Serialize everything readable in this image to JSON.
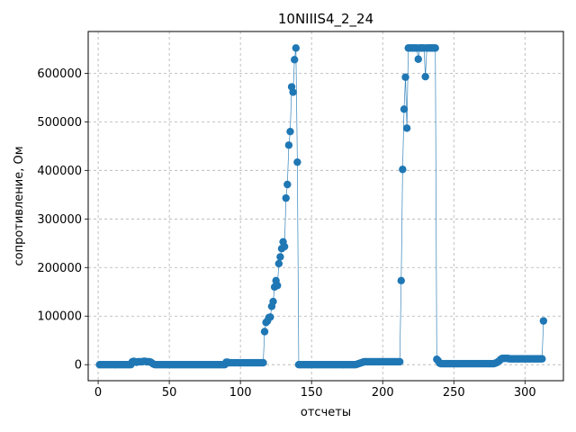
{
  "chart_data": {
    "type": "line",
    "title": "10NIIIS4_2_24",
    "xlabel": "отсчеты",
    "ylabel": "сопротивление, Ом",
    "xlim": [
      -7,
      327
    ],
    "ylim": [
      -33000,
      686000
    ],
    "xticks": [
      0,
      50,
      100,
      150,
      200,
      250,
      300
    ],
    "yticks": [
      0,
      100000,
      200000,
      300000,
      400000,
      500000,
      600000
    ],
    "grid": true,
    "marker": "circle",
    "color": "#1f77b4",
    "series": [
      {
        "points": [
          [
            1,
            0
          ],
          [
            2,
            0
          ],
          [
            3,
            0
          ],
          [
            4,
            0
          ],
          [
            5,
            0
          ],
          [
            6,
            0
          ],
          [
            7,
            0
          ],
          [
            8,
            0
          ],
          [
            9,
            0
          ],
          [
            10,
            0
          ],
          [
            11,
            0
          ],
          [
            12,
            0
          ],
          [
            13,
            0
          ],
          [
            14,
            0
          ],
          [
            15,
            0
          ],
          [
            16,
            0
          ],
          [
            17,
            0
          ],
          [
            18,
            0
          ],
          [
            19,
            0
          ],
          [
            20,
            0
          ],
          [
            21,
            0
          ],
          [
            22,
            0
          ],
          [
            23,
            0
          ],
          [
            24,
            6000
          ],
          [
            25,
            7000
          ],
          [
            26,
            6000
          ],
          [
            27,
            5000
          ],
          [
            28,
            6000
          ],
          [
            29,
            6000
          ],
          [
            30,
            6000
          ],
          [
            31,
            6000
          ],
          [
            32,
            7000
          ],
          [
            33,
            7000
          ],
          [
            34,
            6000
          ],
          [
            35,
            6000
          ],
          [
            36,
            6000
          ],
          [
            37,
            5000
          ],
          [
            38,
            3000
          ],
          [
            39,
            1000
          ],
          [
            40,
            0
          ],
          [
            41,
            0
          ],
          [
            42,
            0
          ],
          [
            43,
            0
          ],
          [
            44,
            0
          ],
          [
            45,
            0
          ],
          [
            46,
            0
          ],
          [
            47,
            0
          ],
          [
            48,
            0
          ],
          [
            49,
            0
          ],
          [
            50,
            0
          ],
          [
            51,
            0
          ],
          [
            52,
            0
          ],
          [
            53,
            0
          ],
          [
            54,
            0
          ],
          [
            55,
            0
          ],
          [
            56,
            0
          ],
          [
            57,
            0
          ],
          [
            58,
            0
          ],
          [
            59,
            0
          ],
          [
            60,
            0
          ],
          [
            61,
            0
          ],
          [
            62,
            0
          ],
          [
            63,
            0
          ],
          [
            64,
            0
          ],
          [
            65,
            0
          ],
          [
            66,
            0
          ],
          [
            67,
            0
          ],
          [
            68,
            0
          ],
          [
            69,
            0
          ],
          [
            70,
            0
          ],
          [
            71,
            0
          ],
          [
            72,
            0
          ],
          [
            73,
            0
          ],
          [
            74,
            0
          ],
          [
            75,
            0
          ],
          [
            76,
            0
          ],
          [
            77,
            0
          ],
          [
            78,
            0
          ],
          [
            79,
            0
          ],
          [
            80,
            0
          ],
          [
            81,
            0
          ],
          [
            82,
            0
          ],
          [
            83,
            0
          ],
          [
            84,
            0
          ],
          [
            85,
            0
          ],
          [
            86,
            0
          ],
          [
            87,
            0
          ],
          [
            88,
            0
          ],
          [
            89,
            0
          ],
          [
            90,
            5000
          ],
          [
            91,
            5000
          ],
          [
            92,
            4000
          ],
          [
            93,
            4000
          ],
          [
            94,
            4000
          ],
          [
            95,
            4000
          ],
          [
            96,
            4000
          ],
          [
            97,
            4000
          ],
          [
            98,
            4000
          ],
          [
            99,
            4000
          ],
          [
            100,
            4000
          ],
          [
            101,
            4000
          ],
          [
            102,
            4000
          ],
          [
            103,
            4000
          ],
          [
            104,
            4000
          ],
          [
            105,
            4000
          ],
          [
            106,
            4000
          ],
          [
            107,
            4000
          ],
          [
            108,
            4000
          ],
          [
            109,
            4000
          ],
          [
            110,
            4000
          ],
          [
            111,
            4000
          ],
          [
            112,
            4000
          ],
          [
            113,
            4000
          ],
          [
            114,
            4000
          ],
          [
            115,
            4000
          ],
          [
            116,
            4000
          ],
          [
            117,
            68000
          ],
          [
            118,
            87000
          ],
          [
            119,
            90000
          ],
          [
            120,
            97000
          ],
          [
            121,
            98000
          ],
          [
            122,
            120000
          ],
          [
            123,
            130000
          ],
          [
            124,
            160000
          ],
          [
            125,
            173000
          ],
          [
            126,
            163000
          ],
          [
            127,
            208000
          ],
          [
            128,
            222000
          ],
          [
            129,
            239000
          ],
          [
            130,
            253000
          ],
          [
            131,
            243000
          ],
          [
            132,
            343000
          ],
          [
            133,
            371000
          ],
          [
            134,
            452000
          ],
          [
            135,
            480000
          ],
          [
            136,
            572000
          ],
          [
            137,
            561000
          ],
          [
            138,
            628000
          ],
          [
            139,
            652000
          ],
          [
            140,
            417000
          ],
          [
            141,
            0
          ],
          [
            142,
            0
          ],
          [
            143,
            0
          ],
          [
            144,
            0
          ],
          [
            145,
            0
          ],
          [
            146,
            0
          ],
          [
            147,
            0
          ],
          [
            148,
            0
          ],
          [
            149,
            0
          ],
          [
            150,
            0
          ],
          [
            151,
            0
          ],
          [
            152,
            0
          ],
          [
            153,
            0
          ],
          [
            154,
            0
          ],
          [
            155,
            0
          ],
          [
            156,
            0
          ],
          [
            157,
            0
          ],
          [
            158,
            0
          ],
          [
            159,
            0
          ],
          [
            160,
            0
          ],
          [
            161,
            0
          ],
          [
            162,
            0
          ],
          [
            163,
            0
          ],
          [
            164,
            0
          ],
          [
            165,
            0
          ],
          [
            166,
            0
          ],
          [
            167,
            0
          ],
          [
            168,
            0
          ],
          [
            169,
            0
          ],
          [
            170,
            0
          ],
          [
            171,
            0
          ],
          [
            172,
            0
          ],
          [
            173,
            0
          ],
          [
            174,
            0
          ],
          [
            175,
            0
          ],
          [
            176,
            0
          ],
          [
            177,
            0
          ],
          [
            178,
            0
          ],
          [
            179,
            0
          ],
          [
            180,
            0
          ],
          [
            181,
            0
          ],
          [
            182,
            1000
          ],
          [
            183,
            2000
          ],
          [
            184,
            3000
          ],
          [
            185,
            4000
          ],
          [
            186,
            5000
          ],
          [
            187,
            6000
          ],
          [
            188,
            6000
          ],
          [
            189,
            6000
          ],
          [
            190,
            6000
          ],
          [
            191,
            6000
          ],
          [
            192,
            6000
          ],
          [
            193,
            6000
          ],
          [
            194,
            6000
          ],
          [
            195,
            6000
          ],
          [
            196,
            6000
          ],
          [
            197,
            6000
          ],
          [
            198,
            6000
          ],
          [
            199,
            6000
          ],
          [
            200,
            6000
          ],
          [
            201,
            6000
          ],
          [
            202,
            6000
          ],
          [
            203,
            6000
          ],
          [
            204,
            6000
          ],
          [
            205,
            6000
          ],
          [
            206,
            6000
          ],
          [
            207,
            6000
          ],
          [
            208,
            6000
          ],
          [
            209,
            6000
          ],
          [
            210,
            6000
          ],
          [
            211,
            6000
          ],
          [
            212,
            6000
          ],
          [
            213,
            173000
          ],
          [
            214,
            402000
          ],
          [
            215,
            526000
          ],
          [
            216,
            592000
          ],
          [
            217,
            487000
          ],
          [
            218,
            652000
          ],
          [
            219,
            652000
          ],
          [
            220,
            652000
          ],
          [
            221,
            652000
          ],
          [
            222,
            652000
          ],
          [
            223,
            652000
          ],
          [
            224,
            652000
          ],
          [
            225,
            629000
          ],
          [
            226,
            652000
          ],
          [
            227,
            652000
          ],
          [
            228,
            652000
          ],
          [
            229,
            652000
          ],
          [
            230,
            593000
          ],
          [
            231,
            652000
          ],
          [
            232,
            652000
          ],
          [
            233,
            652000
          ],
          [
            234,
            652000
          ],
          [
            235,
            652000
          ],
          [
            236,
            652000
          ],
          [
            237,
            652000
          ],
          [
            238,
            11000
          ],
          [
            239,
            8000
          ],
          [
            240,
            3000
          ],
          [
            241,
            2000
          ],
          [
            242,
            2000
          ],
          [
            243,
            2000
          ],
          [
            244,
            2000
          ],
          [
            245,
            2000
          ],
          [
            246,
            2000
          ],
          [
            247,
            2000
          ],
          [
            248,
            2000
          ],
          [
            249,
            2000
          ],
          [
            250,
            2000
          ],
          [
            251,
            2000
          ],
          [
            252,
            2000
          ],
          [
            253,
            2000
          ],
          [
            254,
            2000
          ],
          [
            255,
            2000
          ],
          [
            256,
            2000
          ],
          [
            257,
            2000
          ],
          [
            258,
            2000
          ],
          [
            259,
            2000
          ],
          [
            260,
            2000
          ],
          [
            261,
            2000
          ],
          [
            262,
            2000
          ],
          [
            263,
            2000
          ],
          [
            264,
            2000
          ],
          [
            265,
            2000
          ],
          [
            266,
            2000
          ],
          [
            267,
            2000
          ],
          [
            268,
            2000
          ],
          [
            269,
            2000
          ],
          [
            270,
            2000
          ],
          [
            271,
            2000
          ],
          [
            272,
            2000
          ],
          [
            273,
            2000
          ],
          [
            274,
            2000
          ],
          [
            275,
            2000
          ],
          [
            276,
            2000
          ],
          [
            277,
            2000
          ],
          [
            278,
            2000
          ],
          [
            279,
            3000
          ],
          [
            280,
            4000
          ],
          [
            281,
            6000
          ],
          [
            282,
            8000
          ],
          [
            283,
            11000
          ],
          [
            284,
            13000
          ],
          [
            285,
            13000
          ],
          [
            286,
            13000
          ],
          [
            287,
            13000
          ],
          [
            288,
            13000
          ],
          [
            289,
            12000
          ],
          [
            290,
            12000
          ],
          [
            291,
            12000
          ],
          [
            292,
            12000
          ],
          [
            293,
            12000
          ],
          [
            294,
            12000
          ],
          [
            295,
            12000
          ],
          [
            296,
            12000
          ],
          [
            297,
            12000
          ],
          [
            298,
            12000
          ],
          [
            299,
            12000
          ],
          [
            300,
            12000
          ],
          [
            301,
            12000
          ],
          [
            302,
            12000
          ],
          [
            303,
            12000
          ],
          [
            304,
            12000
          ],
          [
            305,
            12000
          ],
          [
            306,
            12000
          ],
          [
            307,
            12000
          ],
          [
            308,
            12000
          ],
          [
            309,
            12000
          ],
          [
            310,
            12000
          ],
          [
            311,
            12000
          ],
          [
            312,
            12000
          ],
          [
            313,
            90000
          ]
        ]
      }
    ]
  }
}
